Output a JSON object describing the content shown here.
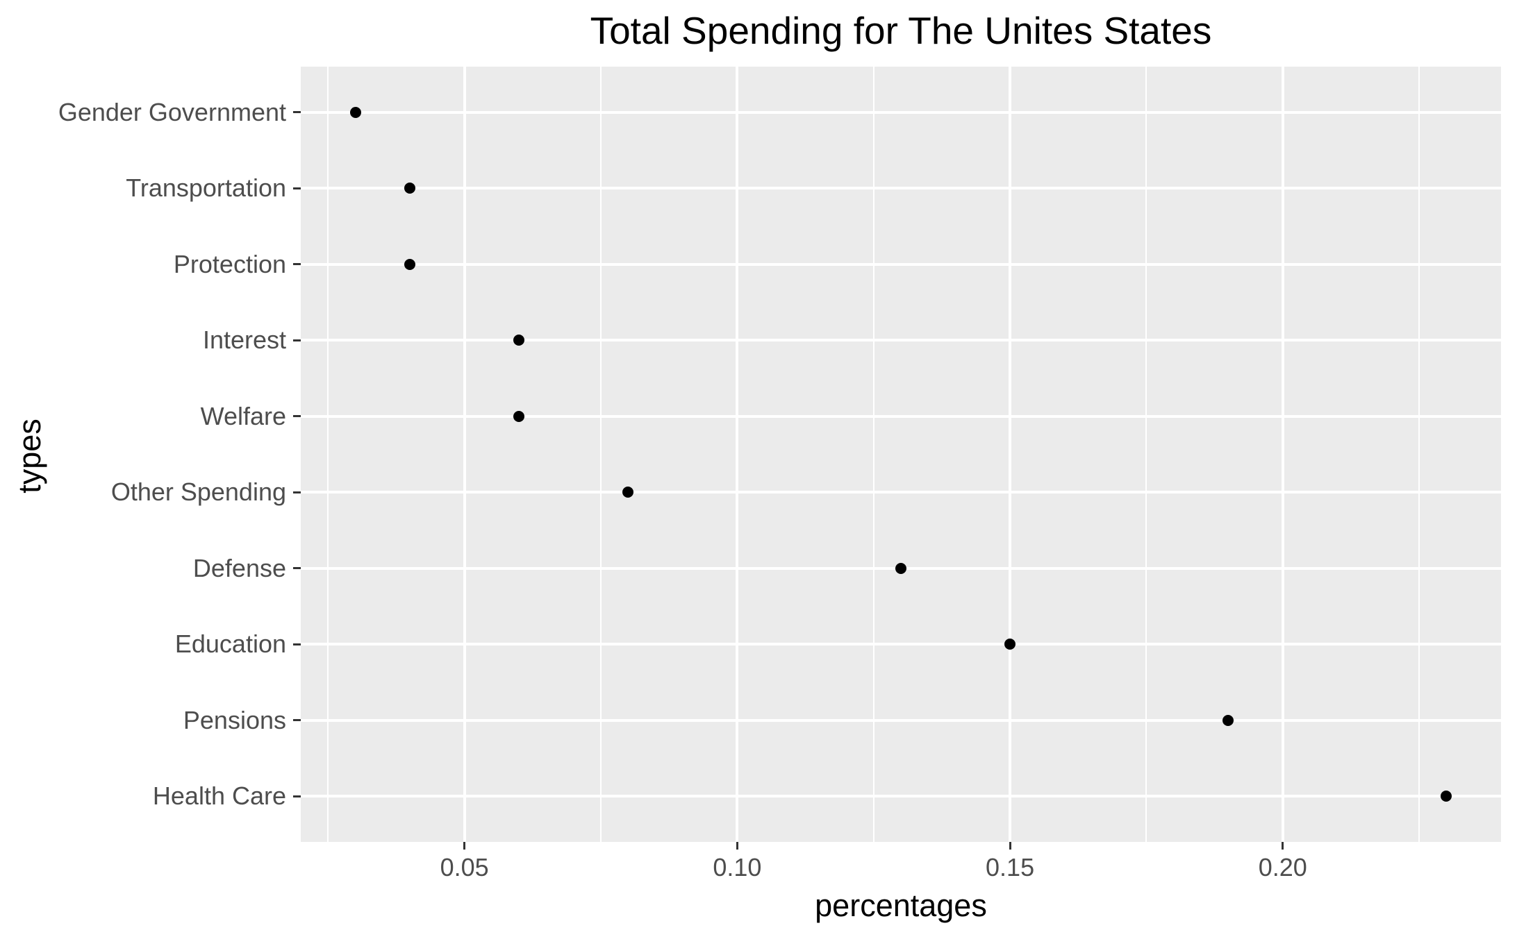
{
  "chart_data": {
    "type": "scatter",
    "title": "Total Spending for The Unites States",
    "xlabel": "percentages",
    "ylabel": "types",
    "categories": [
      "Gender Government",
      "Transportation",
      "Protection",
      "Interest",
      "Welfare",
      "Other Spending",
      "Defense",
      "Education",
      "Pensions",
      "Health Care"
    ],
    "values": [
      0.03,
      0.04,
      0.04,
      0.06,
      0.06,
      0.08,
      0.13,
      0.15,
      0.19,
      0.23
    ],
    "xlim": [
      0.02,
      0.24
    ],
    "x_ticks": [
      0.05,
      0.1,
      0.15,
      0.2
    ],
    "x_tick_labels": [
      "0.05",
      "0.10",
      "0.15",
      "0.20"
    ],
    "x_minor_ticks": [
      0.025,
      0.075,
      0.125,
      0.175,
      0.225
    ],
    "grid": true,
    "legend": "none",
    "orientation": "horizontal dot plot (categories on y-axis)"
  },
  "colors": {
    "panel_background": "#EBEBEB",
    "grid": "#FFFFFF",
    "point": "#000000",
    "axis_text": "#4D4D4D",
    "tick": "#333333",
    "title": "#000000"
  }
}
